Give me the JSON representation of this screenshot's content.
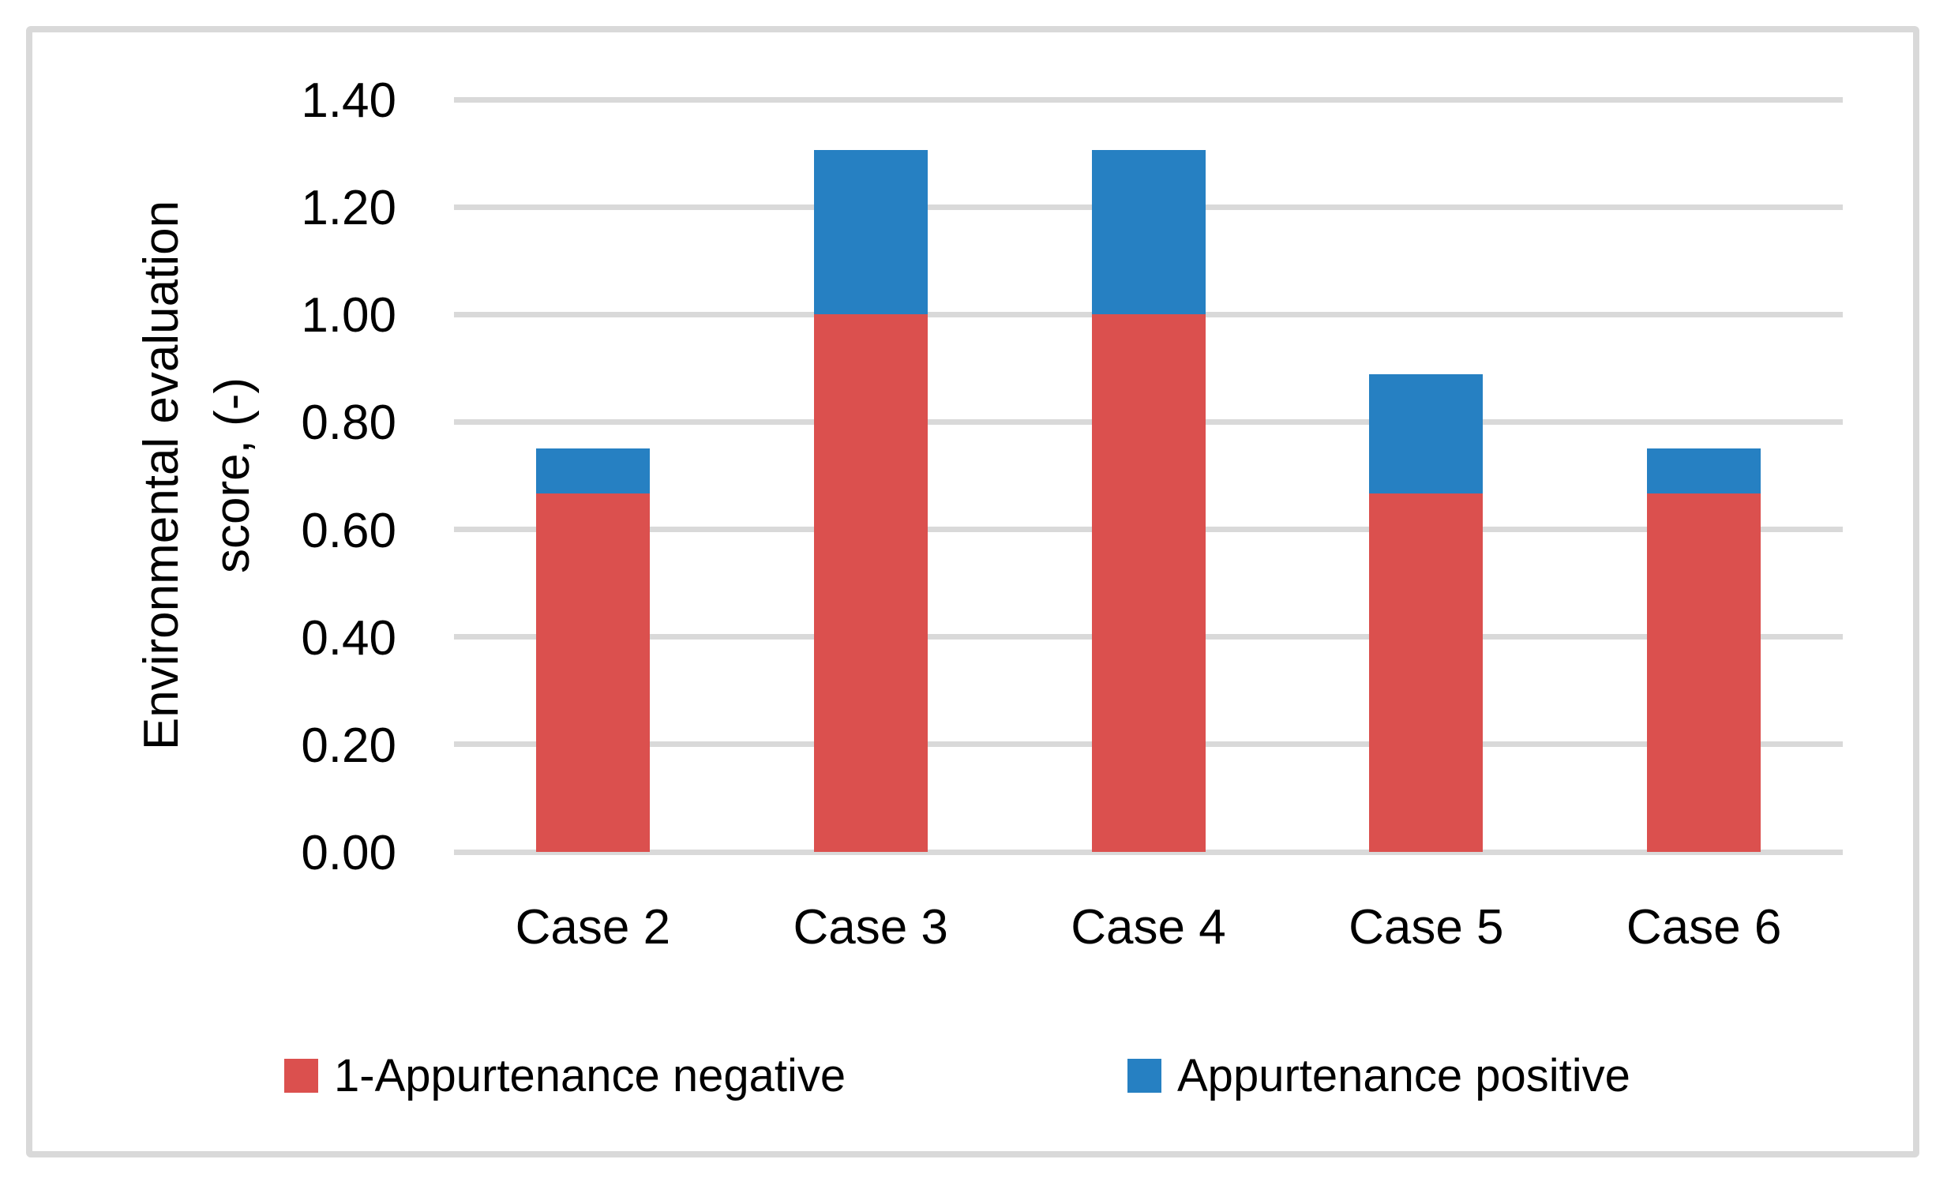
{
  "figure": {
    "background": "#FFFFFF",
    "border_color": "#D9D9D9"
  },
  "chart_data": {
    "type": "bar",
    "stacked": true,
    "title": "",
    "xlabel": "",
    "ylabel": "Environmental evaluation score, (-)",
    "ylabel_lines": [
      "Environmental evaluation",
      "score, (-)"
    ],
    "categories": [
      "Case 2",
      "Case 3",
      "Case 4",
      "Case 5",
      "Case 6"
    ],
    "series": [
      {
        "name": "1-Appurtenance negative",
        "color": "#DB504E",
        "values": [
          0.667,
          1.0,
          1.0,
          0.667,
          0.667
        ]
      },
      {
        "name": "Appurtenance positive",
        "color": "#2680C2",
        "values": [
          0.083,
          0.306,
          0.306,
          0.222,
          0.083
        ]
      }
    ],
    "stacked_totals": [
      0.75,
      1.306,
      1.306,
      0.889,
      0.75
    ],
    "ylim": [
      0,
      1.4
    ],
    "ytick_step": 0.2,
    "yticks": [
      "0.00",
      "0.20",
      "0.40",
      "0.60",
      "0.80",
      "1.00",
      "1.20",
      "1.40"
    ],
    "grid": "horizontal",
    "gridline_color": "#D9D9D9",
    "axis_line_color": "#D9D9D9",
    "text_color": "#000000",
    "legend_position": "bottom"
  }
}
